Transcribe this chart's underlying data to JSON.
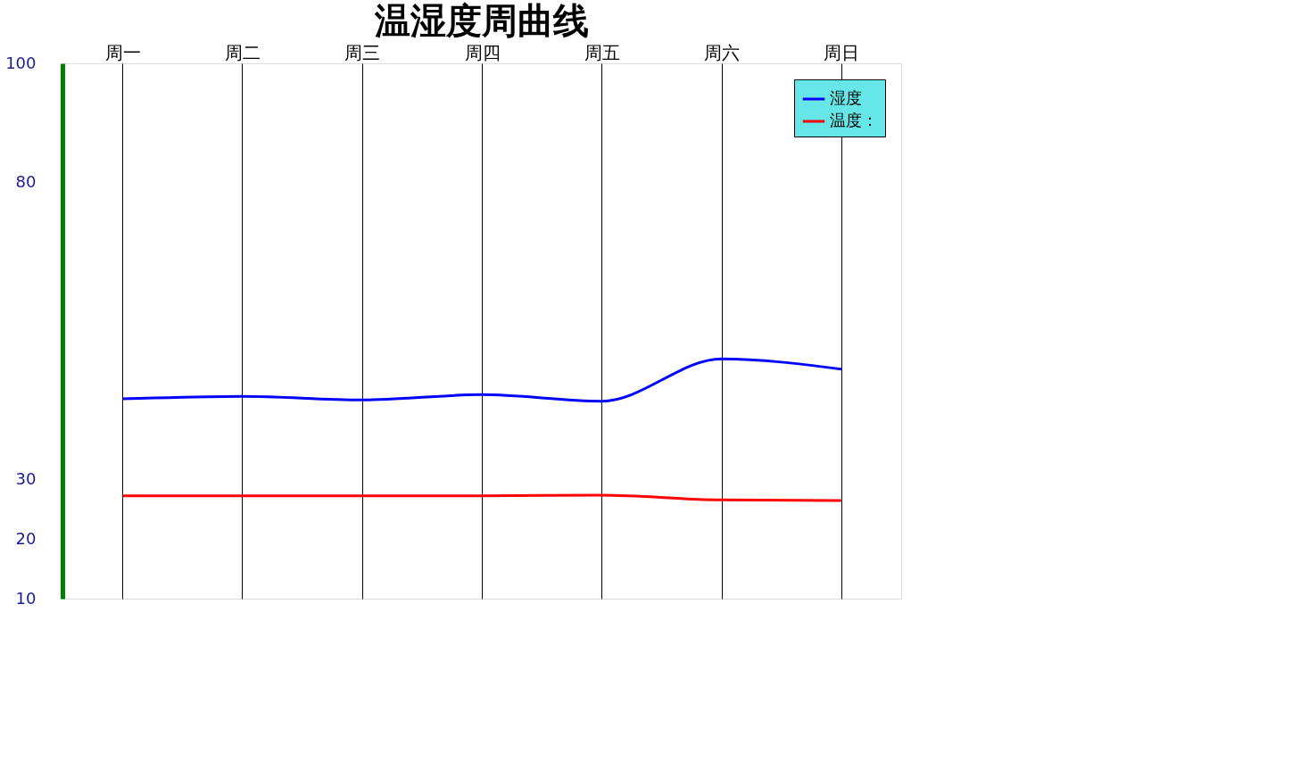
{
  "chart_data": {
    "type": "line",
    "title": "温湿度周曲线",
    "categories": [
      "周一",
      "周二",
      "周三",
      "周四",
      "周五",
      "周六",
      "周日"
    ],
    "series": [
      {
        "name": "湿度",
        "color": "#0000ff",
        "values": [
          43.6,
          44,
          43.4,
          44.3,
          43.2,
          50.3,
          48.6
        ]
      },
      {
        "name": "温度：",
        "color": "#ff0000",
        "values": [
          27.3,
          27.3,
          27.3,
          27.3,
          27.4,
          26.6,
          26.5
        ]
      }
    ],
    "ylim": [
      10,
      100
    ],
    "yticks": [
      10,
      20,
      30,
      80,
      100
    ],
    "grid": "x",
    "legend": "top right",
    "marker": "none",
    "line_style": "solid"
  }
}
